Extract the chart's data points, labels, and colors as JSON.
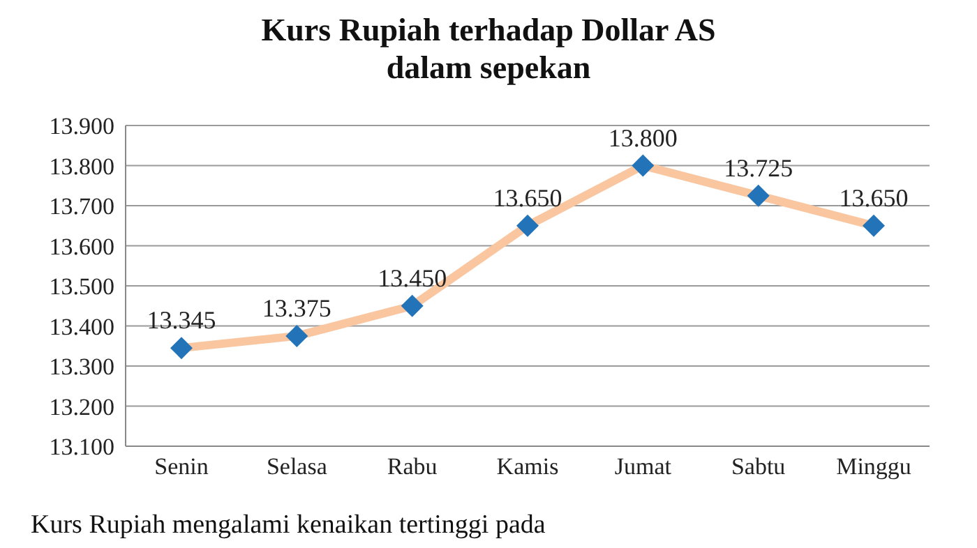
{
  "chart_data": {
    "type": "line",
    "title": "Kurs Rupiah terhadap Dollar AS\ndalam sepekan",
    "categories": [
      "Senin",
      "Selasa",
      "Rabu",
      "Kamis",
      "Jumat",
      "Sabtu",
      "Minggu"
    ],
    "series": [
      {
        "color": "#f9c6a0",
        "colors": [
          "#2273b8",
          "#2273b8",
          "#2273b8",
          "#2273b8",
          "#2273b8",
          "#2273b8",
          "#2273b8"
        ],
        "values": [
          13345,
          13375,
          13450,
          13650,
          13800,
          13725,
          13650
        ],
        "value_labels": [
          "13.345",
          "13.375",
          "13.450",
          "13.650",
          "13.800",
          "13.725",
          "13.650"
        ]
      }
    ],
    "ylim": [
      13100,
      13900
    ],
    "yticks": [
      {
        "value": 13100,
        "label": "13.100"
      },
      {
        "value": 13200,
        "label": "13.200"
      },
      {
        "value": 13300,
        "label": "13.300"
      },
      {
        "value": 13400,
        "label": "13.400"
      },
      {
        "value": 13500,
        "label": "13.500"
      },
      {
        "value": 13600,
        "label": "13.600"
      },
      {
        "value": 13700,
        "label": "13.700"
      },
      {
        "value": 13800,
        "label": "13.800"
      },
      {
        "value": 13900,
        "label": "13.900"
      }
    ],
    "grid": "y",
    "marker": "diamond",
    "line_style": "solid",
    "annotations": [
      "Kurs Rupiah mengalami kenaikan tertinggi pada"
    ]
  }
}
